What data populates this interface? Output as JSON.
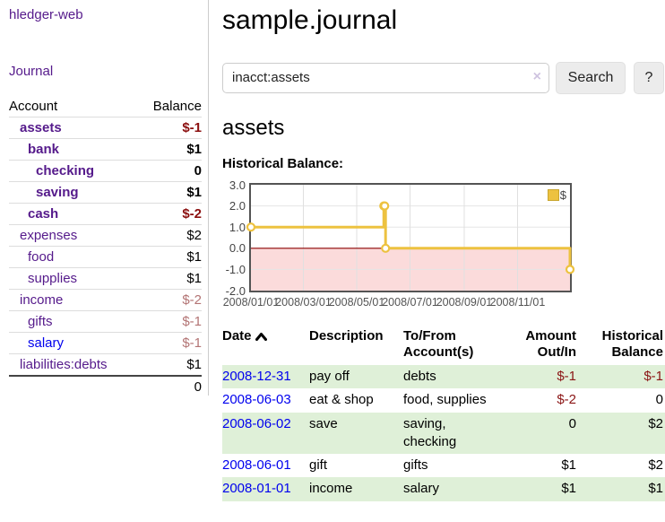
{
  "brand": "hledger-web",
  "nav": {
    "journal": "Journal"
  },
  "sidebar": {
    "columns": {
      "account": "Account",
      "balance": "Balance"
    },
    "rows": [
      {
        "account": "assets",
        "balance": "$-1",
        "indent": 0,
        "emph": true,
        "neg": "strong",
        "link": "purple"
      },
      {
        "account": "bank",
        "balance": "$1",
        "indent": 1,
        "emph": true,
        "neg": "none",
        "link": "purple"
      },
      {
        "account": "checking",
        "balance": "0",
        "indent": 2,
        "emph": true,
        "neg": "none",
        "link": "purple"
      },
      {
        "account": "saving",
        "balance": "$1",
        "indent": 2,
        "emph": true,
        "neg": "none",
        "link": "purple"
      },
      {
        "account": "cash",
        "balance": "$-2",
        "indent": 1,
        "emph": true,
        "neg": "strong",
        "link": "purple"
      },
      {
        "account": "expenses",
        "balance": "$2",
        "indent": 0,
        "emph": false,
        "neg": "none",
        "link": "purple"
      },
      {
        "account": "food",
        "balance": "$1",
        "indent": 1,
        "emph": false,
        "neg": "none",
        "link": "purple"
      },
      {
        "account": "supplies",
        "balance": "$1",
        "indent": 1,
        "emph": false,
        "neg": "none",
        "link": "purple"
      },
      {
        "account": "income",
        "balance": "$-2",
        "indent": 0,
        "emph": false,
        "neg": "muted",
        "link": "purple"
      },
      {
        "account": "gifts",
        "balance": "$-1",
        "indent": 1,
        "emph": false,
        "neg": "muted",
        "link": "purple"
      },
      {
        "account": "salary",
        "balance": "$-1",
        "indent": 1,
        "emph": false,
        "neg": "muted",
        "link": "blue"
      },
      {
        "account": "liabilities:debts",
        "balance": "$1",
        "indent": 0,
        "emph": false,
        "neg": "none",
        "link": "purple"
      }
    ],
    "total": "0"
  },
  "header": {
    "title": "sample.journal"
  },
  "search": {
    "value": "inacct:assets",
    "clear_icon": "×",
    "search_label": "Search",
    "help_label": "?"
  },
  "account_page": {
    "heading": "assets",
    "chart_label": "Historical Balance:"
  },
  "chart_data": {
    "type": "line",
    "step": true,
    "title": "Historical Balance",
    "series": [
      {
        "name": "$",
        "color": "#edc240",
        "points": [
          [
            "2008-01-01",
            1
          ],
          [
            "2008-06-01",
            2
          ],
          [
            "2008-06-02",
            2
          ],
          [
            "2008-06-03",
            0
          ],
          [
            "2008-12-31",
            -1
          ]
        ]
      }
    ],
    "x_range": [
      "2008-01-01",
      "2008-12-31"
    ],
    "ylim": [
      -2,
      3
    ],
    "y_ticks": [
      "3.0",
      "2.0",
      "1.0",
      "0.0",
      "-1.0",
      "-2.0"
    ],
    "x_ticks": [
      {
        "label": "2008/01/01",
        "date": "2008-01-01"
      },
      {
        "label": "2008/03/01",
        "date": "2008-03-01"
      },
      {
        "label": "2008/05/01",
        "date": "2008-05-01"
      },
      {
        "label": "2008/07/01",
        "date": "2008-07-01"
      },
      {
        "label": "2008/09/01",
        "date": "2008-09-01"
      },
      {
        "label": "2008/11/01",
        "date": "2008-11-01"
      }
    ],
    "grid": true,
    "negative_region_fill": "#fbdbdb",
    "zero_line_color": "#8b0000",
    "legend": {
      "label": "$",
      "position": "top-right"
    }
  },
  "register": {
    "headers": {
      "date": "Date",
      "description": "Description",
      "accounts": "To/From Account(s)",
      "amount": "Amount Out/In",
      "balance": "Historical Balance"
    },
    "rows": [
      {
        "date": "2008-12-31",
        "description": "pay off",
        "accounts": "debts",
        "amount": "$-1",
        "balance": "$-1",
        "amount_neg": true,
        "balance_neg": true
      },
      {
        "date": "2008-06-03",
        "description": "eat & shop",
        "accounts": "food, supplies",
        "amount": "$-2",
        "balance": "0",
        "amount_neg": true,
        "balance_neg": false
      },
      {
        "date": "2008-06-02",
        "description": "save",
        "accounts": "saving, checking",
        "amount": "0",
        "balance": "$2",
        "amount_neg": false,
        "balance_neg": false
      },
      {
        "date": "2008-06-01",
        "description": "gift",
        "accounts": "gifts",
        "amount": "$1",
        "balance": "$2",
        "amount_neg": false,
        "balance_neg": false
      },
      {
        "date": "2008-01-01",
        "description": "income",
        "accounts": "salary",
        "amount": "$1",
        "balance": "$1",
        "amount_neg": false,
        "balance_neg": false
      }
    ]
  },
  "colors": {
    "link_purple": "#551a8b",
    "link_blue": "#0000ee",
    "negative_strong": "#8b0f0f",
    "negative_muted": "#b37474",
    "negative": "#8b1515",
    "row_stripe_green": "#dff0d8",
    "chart_gold": "#edc240",
    "chart_negative_fill": "#fbdbdb",
    "chart_zero_line": "#8b0000",
    "chart_border": "#545454",
    "button_bg": "#ececec"
  }
}
